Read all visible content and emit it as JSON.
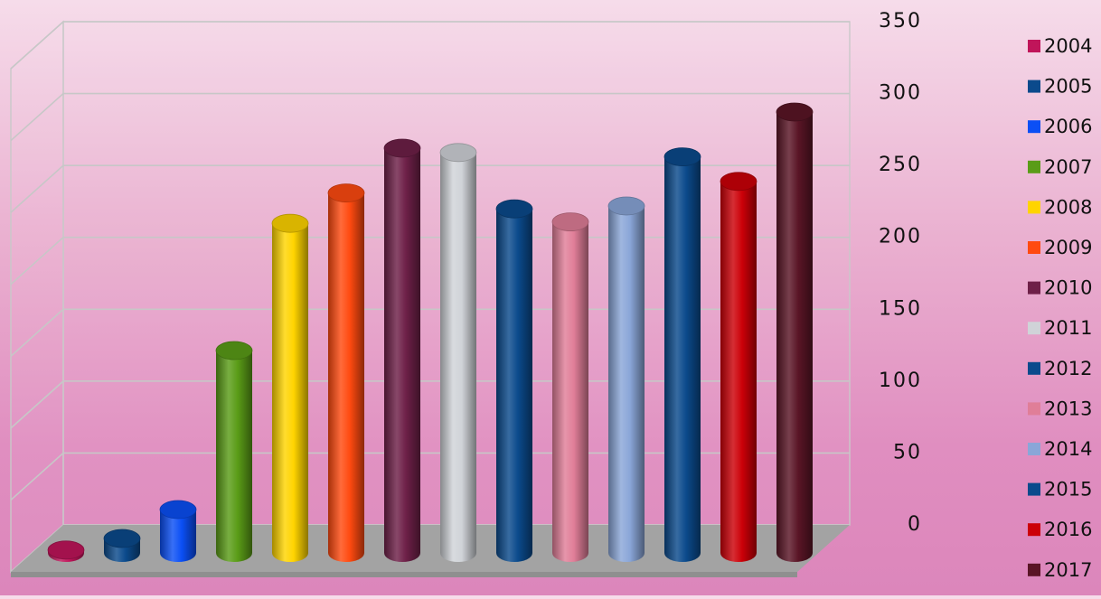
{
  "chart_data": {
    "type": "bar",
    "title": "",
    "xlabel": "",
    "ylabel": "",
    "ylim": [
      0,
      350
    ],
    "yticks": [
      0,
      50,
      100,
      150,
      200,
      250,
      300,
      350
    ],
    "grid": true,
    "legend_position": "right",
    "categories": [
      "2004",
      "2005",
      "2006",
      "2007",
      "2008",
      "2009",
      "2010",
      "2011",
      "2012",
      "2013",
      "2014",
      "2015",
      "2016",
      "2017"
    ],
    "values": [
      2,
      10,
      30,
      140,
      228,
      249,
      280,
      277,
      238,
      229,
      240,
      274,
      257,
      305
    ],
    "colors": [
      "#c0155a",
      "#0b4a8c",
      "#0b4ff5",
      "#5a9c17",
      "#ffd400",
      "#ff4a10",
      "#6e2048",
      "#d0d3d8",
      "#0b4a8c",
      "#e07e98",
      "#8aa6d8",
      "#0b4a8c",
      "#cc0008",
      "#5a1526"
    ]
  }
}
